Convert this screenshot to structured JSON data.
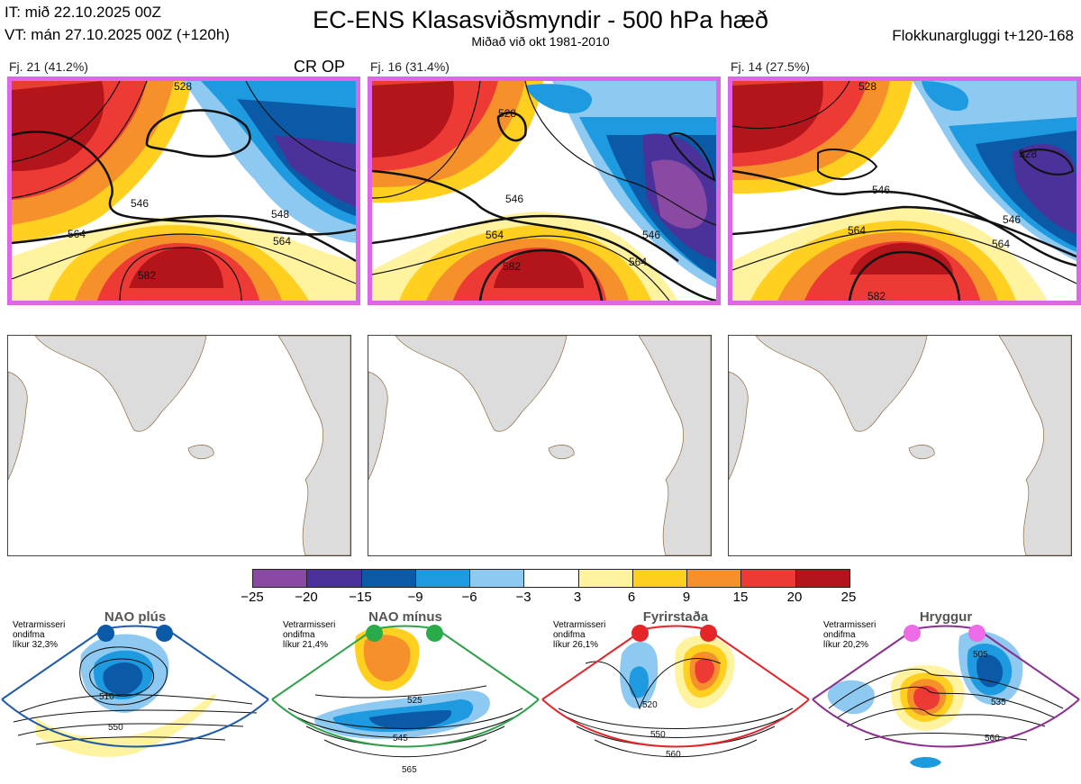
{
  "header": {
    "init_time": "IT: mið 22.10.2025 00Z",
    "valid_time": "VT: mán 27.10.2025 00Z  (+120h)",
    "title": "EC-ENS Klasasviðsmyndir - 500 hPa hæð",
    "subtitle": "Miðað við okt 1981-2010",
    "window": "Flokkunargluggi t+120-168"
  },
  "clusters": [
    {
      "label": "Fj. 21 (41.2%)",
      "tag": "CR OP",
      "contours": [
        "546",
        "548",
        "564",
        "564",
        "582",
        "528"
      ]
    },
    {
      "label": "Fj. 16 (31.4%)",
      "tag": "",
      "contours": [
        "546",
        "564",
        "564",
        "582",
        "528",
        "546"
      ]
    },
    {
      "label": "Fj. 14 (27.5%)",
      "tag": "",
      "contours": [
        "546",
        "564",
        "564",
        "528",
        "528",
        "582",
        "546"
      ]
    }
  ],
  "colorbar": {
    "ticks": [
      "−25",
      "−20",
      "−15",
      "−9",
      "−6",
      "−3",
      "3",
      "6",
      "9",
      "15",
      "20",
      "25"
    ],
    "colors": [
      "#8a4aa3",
      "#4a329a",
      "#0b5aa8",
      "#1d9ae0",
      "#8dc9f0",
      "#ffffff",
      "#fff3a0",
      "#ffd020",
      "#f5902a",
      "#ee3a35",
      "#b3151b"
    ]
  },
  "regimes": [
    {
      "title": "NAO plús",
      "info": "Vetrarmisseri\nondifma\nlíkur 32,3%",
      "color": "#1f5ba6",
      "dot": "#0b5aa8",
      "labels": [
        "510",
        "550"
      ]
    },
    {
      "title": "NAO mínus",
      "info": "Vetrarmisseri\nondifma\nlíkur 21,4%",
      "color": "#2ea04a",
      "dot": "#29ab4a",
      "labels": [
        "525",
        "545",
        "565"
      ]
    },
    {
      "title": "Fyrirstaða",
      "info": "Vetrarmisseri\nondifma\nlíkur 26,1%",
      "color": "#e0262b",
      "dot": "#e52528",
      "labels": [
        "520",
        "550",
        "560"
      ]
    },
    {
      "title": "Hryggur",
      "info": "Vetrarmisseri\nondifma\nlíkur 20,2%",
      "color": "#8a2f8e",
      "dot": "#ee6be8",
      "labels": [
        "505",
        "535",
        "560"
      ]
    }
  ]
}
